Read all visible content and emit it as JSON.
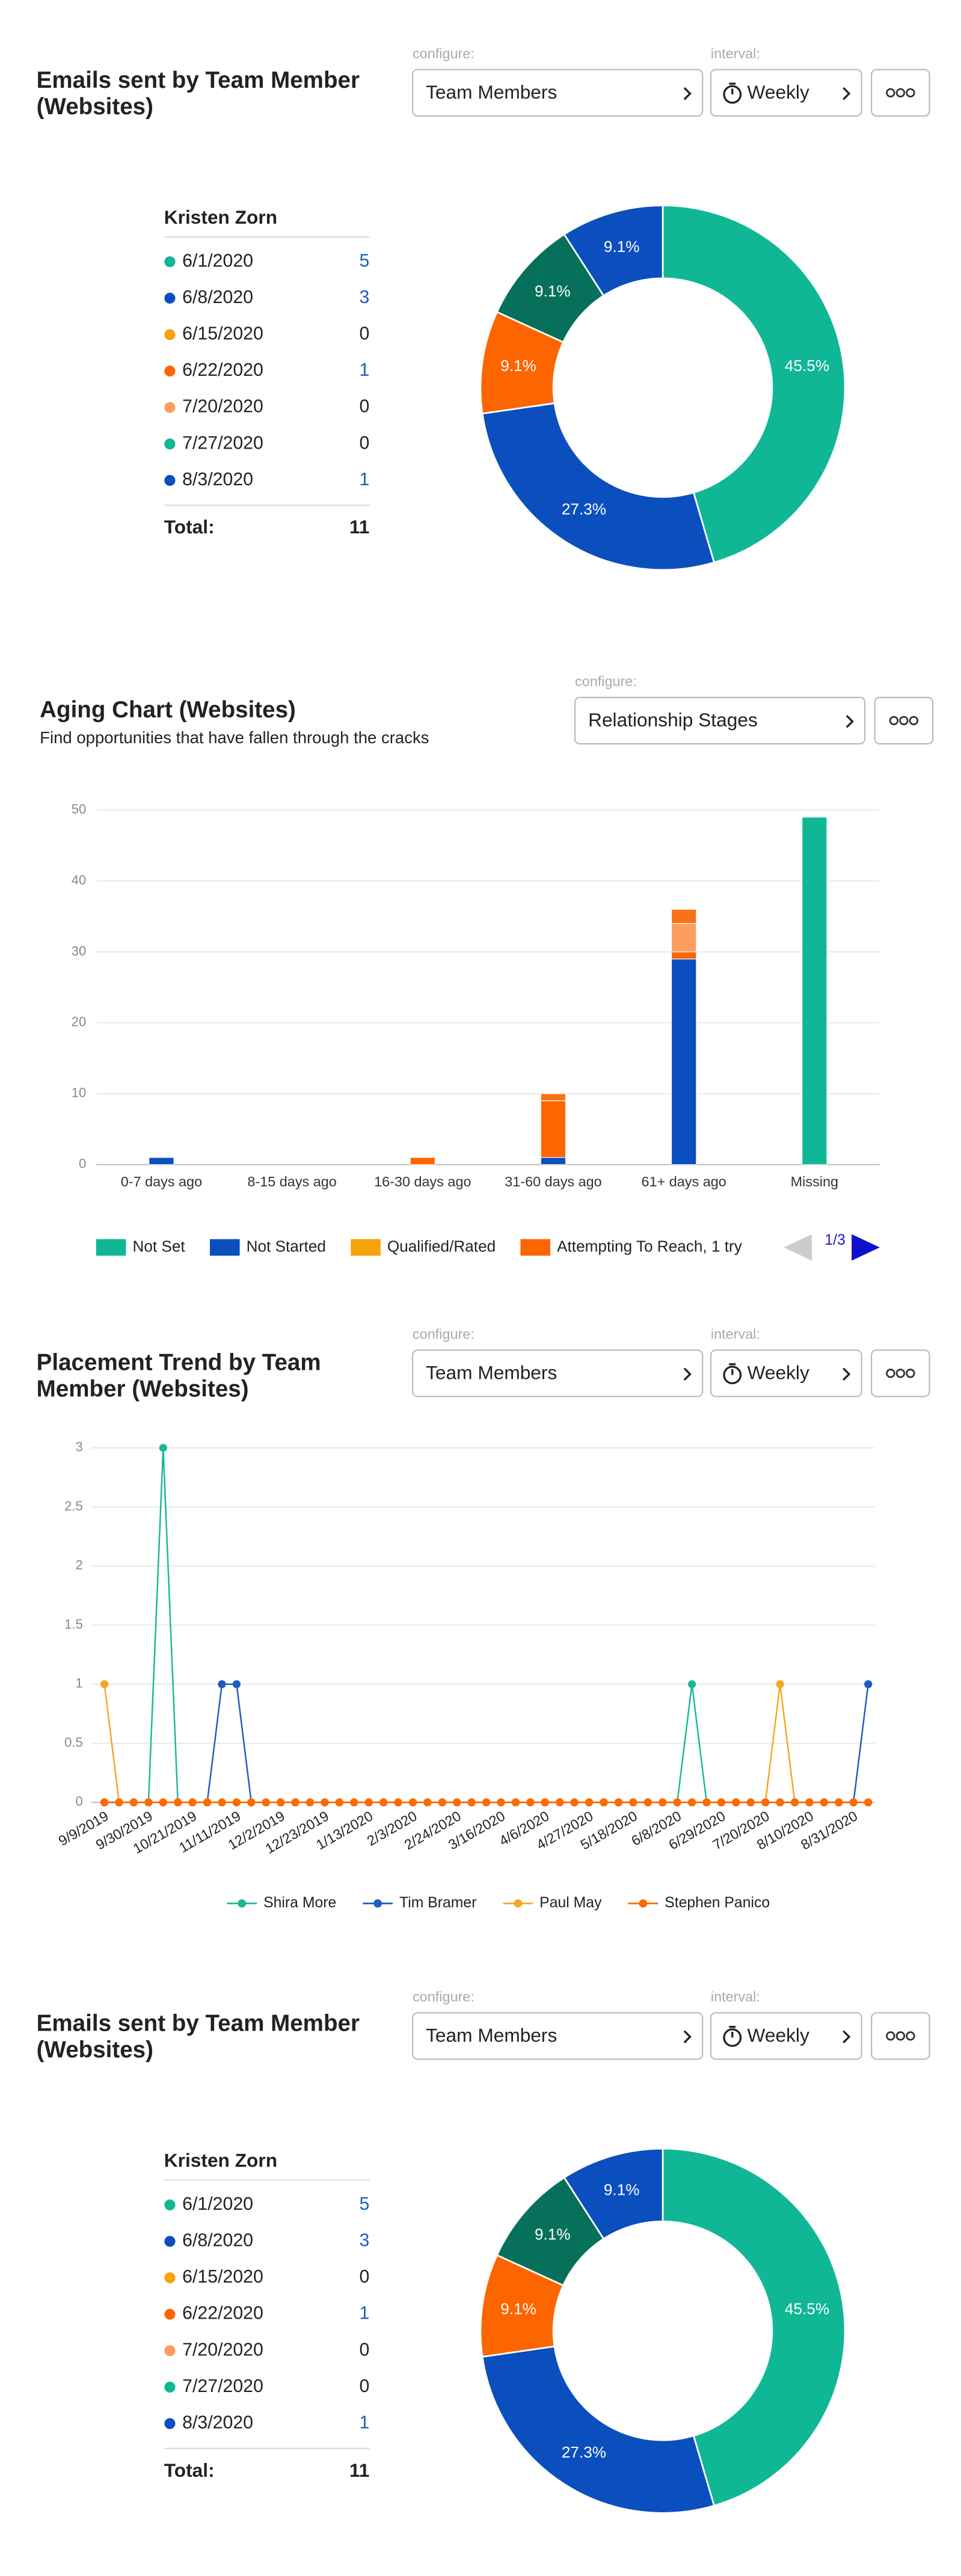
{
  "chart_data": [
    {
      "type": "pie",
      "title": "Emails sent by Team Member (Websites)",
      "controls": [
        {
          "label": "configure:",
          "value": "Team Members"
        },
        {
          "label": "interval:",
          "value": "Weekly"
        }
      ],
      "legend_title": "Kristen Zorn",
      "rows": [
        {
          "label": "6/1/2020",
          "value": 5,
          "color": "#10b795"
        },
        {
          "label": "6/8/2020",
          "value": 3,
          "color": "#0b4fbf"
        },
        {
          "label": "6/15/2020",
          "value": 0,
          "color": "#f6a20a"
        },
        {
          "label": "6/22/2020",
          "value": 1,
          "color": "#fd6500"
        },
        {
          "label": "7/20/2020",
          "value": 0,
          "color": "#fb9e5f"
        },
        {
          "label": "7/27/2020",
          "value": 0,
          "color": "#10b795"
        },
        {
          "label": "8/3/2020",
          "value": 1,
          "color": "#0b4fbf"
        }
      ],
      "total_label": "Total:",
      "total": 11,
      "values": [
        45.5,
        27.3,
        9.1,
        9.1,
        9.1
      ],
      "value_labels": [
        "45.5%",
        "27.3%",
        "9.1%",
        "9.1%",
        "9.1%"
      ],
      "colors": [
        "#10b795",
        "#0b4fbf",
        "#fd6500",
        "#07705a",
        "#0b4fbf"
      ]
    },
    {
      "type": "bar",
      "stacked": true,
      "title": "Aging Chart (Websites)",
      "subtitle": "Find opportunities that have fallen through the cracks",
      "controls": [
        {
          "label": "configure:",
          "value": "Relationship Stages"
        }
      ],
      "categories": [
        "0-7 days ago",
        "8-15 days ago",
        "16-30 days ago",
        "31-60 days ago",
        "61+ days ago",
        "Missing"
      ],
      "series": [
        {
          "name": "Not Set",
          "color": "#10b795",
          "values": [
            0,
            0,
            0,
            0,
            0,
            49
          ]
        },
        {
          "name": "Not Started",
          "color": "#0b4fbf",
          "values": [
            1,
            0,
            0,
            1,
            29,
            0
          ]
        },
        {
          "name": "Qualified/Rated",
          "color": "#f6a20a",
          "values": [
            0,
            0,
            0,
            0,
            0,
            0
          ]
        },
        {
          "name": "Attempting To Reach, 1 try",
          "color": "#fd6500",
          "values": [
            0,
            0,
            1,
            8,
            1,
            0
          ]
        },
        {
          "name": null,
          "color": "#fb9e5f",
          "values": [
            0,
            0,
            0,
            0,
            4,
            0
          ]
        },
        {
          "name": null,
          "color": "#f97316",
          "values": [
            0,
            0,
            0,
            1,
            2,
            0
          ]
        }
      ],
      "ylim": [
        0,
        50
      ],
      "yticks": [
        0,
        10,
        20,
        30,
        40,
        50
      ],
      "grid": true,
      "legend_page": "1/3"
    },
    {
      "type": "line",
      "title": "Placement Trend by Team Member (Websites)",
      "controls": [
        {
          "label": "configure:",
          "value": "Team Members"
        },
        {
          "label": "interval:",
          "value": "Weekly"
        }
      ],
      "categories": [
        "9/9/2019",
        null,
        null,
        "9/30/2019",
        null,
        null,
        "10/21/2019",
        null,
        null,
        "11/11/2019",
        null,
        null,
        "12/2/2019",
        null,
        null,
        "12/23/2019",
        null,
        null,
        "1/13/2020",
        null,
        null,
        "2/3/2020",
        null,
        null,
        "2/24/2020",
        null,
        null,
        "3/16/2020",
        null,
        null,
        "4/6/2020",
        null,
        null,
        "4/27/2020",
        null,
        null,
        "5/18/2020",
        null,
        null,
        "6/8/2020",
        null,
        null,
        "6/29/2020",
        null,
        null,
        "7/20/2020",
        null,
        null,
        "8/10/2020",
        null,
        null,
        "8/31/2020",
        null
      ],
      "series": [
        {
          "name": "Shira More",
          "color": "#1bb89a",
          "values": [
            0,
            0,
            0,
            0,
            3,
            0,
            0,
            0,
            0,
            0,
            0,
            0,
            0,
            0,
            0,
            0,
            0,
            0,
            0,
            0,
            0,
            0,
            0,
            0,
            0,
            0,
            0,
            0,
            0,
            0,
            0,
            0,
            0,
            0,
            0,
            0,
            0,
            0,
            0,
            0,
            1,
            0,
            0,
            0,
            0,
            0,
            0,
            0,
            0,
            0,
            0,
            0,
            0
          ]
        },
        {
          "name": "Tim Bramer",
          "color": "#1f5dbf",
          "values": [
            0,
            0,
            0,
            0,
            0,
            0,
            0,
            0,
            1,
            1,
            0,
            0,
            0,
            0,
            0,
            0,
            0,
            0,
            0,
            0,
            0,
            0,
            0,
            0,
            0,
            0,
            0,
            0,
            0,
            0,
            0,
            0,
            0,
            0,
            0,
            0,
            0,
            0,
            0,
            0,
            0,
            0,
            0,
            0,
            0,
            0,
            0,
            0,
            0,
            0,
            0,
            0,
            1
          ]
        },
        {
          "name": "Paul May",
          "color": "#f5a623",
          "values": [
            1,
            0,
            0,
            0,
            0,
            0,
            0,
            0,
            0,
            0,
            0,
            0,
            0,
            0,
            0,
            0,
            0,
            0,
            0,
            0,
            0,
            0,
            0,
            0,
            0,
            0,
            0,
            0,
            0,
            0,
            0,
            0,
            0,
            0,
            0,
            0,
            0,
            0,
            0,
            0,
            0,
            0,
            0,
            0,
            0,
            0,
            1,
            0,
            0,
            0,
            0,
            0,
            0
          ]
        },
        {
          "name": "Stephen Panico",
          "color": "#fd6a00",
          "values": [
            0,
            0,
            0,
            0,
            0,
            0,
            0,
            0,
            0,
            0,
            0,
            0,
            0,
            0,
            0,
            0,
            0,
            0,
            0,
            0,
            0,
            0,
            0,
            0,
            0,
            0,
            0,
            0,
            0,
            0,
            0,
            0,
            0,
            0,
            0,
            0,
            0,
            0,
            0,
            0,
            0,
            0,
            0,
            0,
            0,
            0,
            0,
            0,
            0,
            0,
            0,
            0,
            0
          ]
        }
      ],
      "ylim": [
        0,
        3
      ],
      "yticks": [
        0,
        0.5,
        1,
        1.5,
        2,
        2.5,
        3
      ],
      "grid": true
    },
    {
      "type": "pie",
      "title": "Emails sent by Team Member (Websites)",
      "controls": [
        {
          "label": "configure:",
          "value": "Team Members"
        },
        {
          "label": "interval:",
          "value": "Weekly"
        }
      ],
      "legend_title": "Kristen Zorn",
      "rows": [
        {
          "label": "6/1/2020",
          "value": 5,
          "color": "#10b795"
        },
        {
          "label": "6/8/2020",
          "value": 3,
          "color": "#0b4fbf"
        },
        {
          "label": "6/15/2020",
          "value": 0,
          "color": "#f6a20a"
        },
        {
          "label": "6/22/2020",
          "value": 1,
          "color": "#fd6500"
        },
        {
          "label": "7/20/2020",
          "value": 0,
          "color": "#fb9e5f"
        },
        {
          "label": "7/27/2020",
          "value": 0,
          "color": "#10b795"
        },
        {
          "label": "8/3/2020",
          "value": 1,
          "color": "#0b4fbf"
        }
      ],
      "total_label": "Total:",
      "total": 11,
      "values": [
        45.5,
        27.3,
        9.1,
        9.1,
        9.1
      ],
      "value_labels": [
        "45.5%",
        "27.3%",
        "9.1%",
        "9.1%",
        "9.1%"
      ],
      "colors": [
        "#10b795",
        "#0b4fbf",
        "#fd6500",
        "#07705a",
        "#0b4fbf"
      ]
    }
  ]
}
